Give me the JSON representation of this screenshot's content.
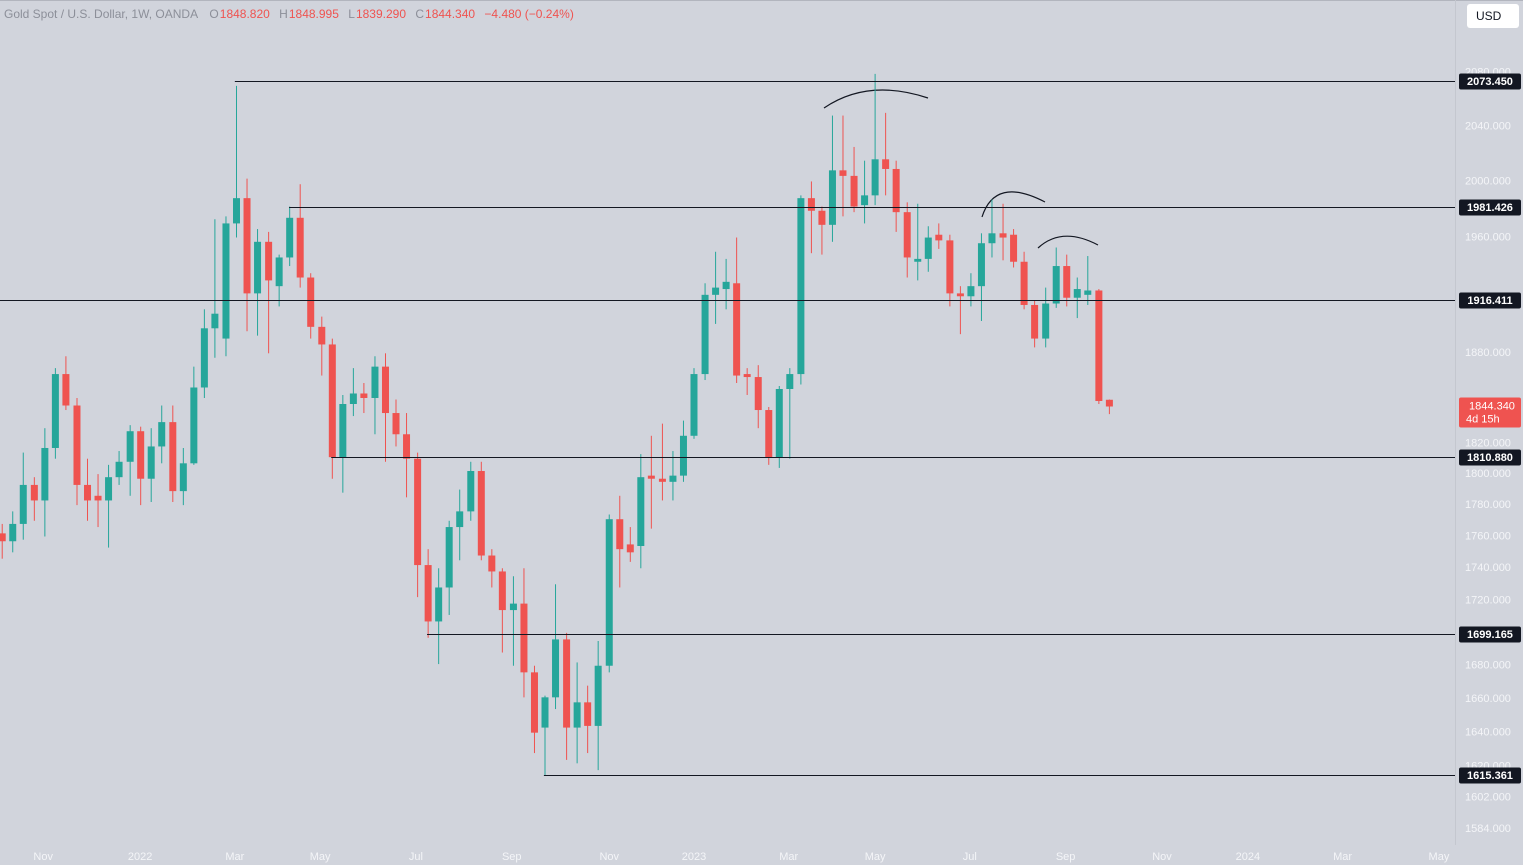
{
  "header": {
    "symbol": "Gold Spot / U.S. Dollar, 1W, OANDA",
    "ohlc": [
      {
        "label": "O",
        "value": "1848.820"
      },
      {
        "label": "H",
        "value": "1848.995"
      },
      {
        "label": "L",
        "value": "1839.290"
      },
      {
        "label": "C",
        "value": "1844.340"
      }
    ],
    "change": "−4.480 (−0.24%)",
    "currency": "USD"
  },
  "chart_data": {
    "type": "candlestick",
    "log_scale": true,
    "up_color": "#26a69a",
    "down_color": "#ef5350",
    "x": [
      2021.751,
      2021.77,
      2021.789,
      2021.809,
      2021.828,
      2021.847,
      2021.866,
      2021.886,
      2021.905,
      2021.924,
      2021.943,
      2021.962,
      2021.982,
      2022.001,
      2022.02,
      2022.039,
      2022.059,
      2022.078,
      2022.097,
      2022.116,
      2022.135,
      2022.155,
      2022.174,
      2022.193,
      2022.212,
      2022.232,
      2022.251,
      2022.27,
      2022.289,
      2022.308,
      2022.328,
      2022.347,
      2022.366,
      2022.385,
      2022.404,
      2022.424,
      2022.443,
      2022.462,
      2022.481,
      2022.501,
      2022.52,
      2022.539,
      2022.558,
      2022.577,
      2022.597,
      2022.616,
      2022.635,
      2022.654,
      2022.674,
      2022.693,
      2022.712,
      2022.731,
      2022.75,
      2022.77,
      2022.789,
      2022.808,
      2022.827,
      2022.847,
      2022.866,
      2022.885,
      2022.904,
      2022.923,
      2022.943,
      2022.962,
      2022.981,
      2023.0,
      2023.02,
      2023.039,
      2023.058,
      2023.077,
      2023.096,
      2023.116,
      2023.135,
      2023.154,
      2023.173,
      2023.193,
      2023.212,
      2023.231,
      2023.25,
      2023.269,
      2023.289,
      2023.308,
      2023.327,
      2023.346,
      2023.365,
      2023.385,
      2023.404,
      2023.423,
      2023.442,
      2023.462,
      2023.481,
      2023.5,
      2023.519,
      2023.538,
      2023.558,
      2023.577,
      2023.596,
      2023.615,
      2023.635,
      2023.654,
      2023.673,
      2023.692,
      2023.711,
      2023.731,
      2023.75
    ],
    "open": [
      1762,
      1757,
      1768,
      1793,
      1783,
      1817,
      1866,
      1845,
      1793,
      1786,
      1783,
      1798,
      1808,
      1828,
      1797,
      1818,
      1834,
      1789,
      1807,
      1857,
      1897,
      1890,
      1970,
      1988,
      1921,
      1957,
      1926,
      1946,
      1974,
      1932,
      1898,
      1886,
      1811,
      1846,
      1853,
      1850,
      1871,
      1840,
      1826,
      1810,
      1742,
      1707,
      1728,
      1766,
      1776,
      1802,
      1748,
      1738,
      1714,
      1718,
      1676,
      1643,
      1661,
      1696,
      1643,
      1658,
      1644,
      1680,
      1771,
      1755,
      1754,
      1799,
      1797,
      1795,
      1799,
      1825,
      1866,
      1920,
      1924,
      1928,
      1866,
      1864,
      1842,
      1811,
      1856,
      1866,
      1988,
      1979,
      1969,
      2008,
      2004,
      1983,
      1990,
      2016,
      2009,
      1978,
      1943,
      1945,
      1962,
      1958,
      1921,
      1919,
      1926,
      1956,
      1963,
      1962,
      1943,
      1913,
      1890,
      1914,
      1940,
      1918,
      1920,
      1923,
      1848.82
    ],
    "high": [
      1768,
      1776,
      1814,
      1798,
      1830,
      1870,
      1878,
      1850,
      1810,
      1800,
      1806,
      1815,
      1832,
      1831,
      1830,
      1845,
      1845,
      1817,
      1871,
      1910,
      1973,
      1975,
      2070,
      2002,
      1966,
      1964,
      1948,
      1982,
      1998,
      1935,
      1905,
      1890,
      1852,
      1870,
      1860,
      1878,
      1880,
      1849,
      1840,
      1814,
      1752,
      1740,
      1770,
      1790,
      1808,
      1808,
      1752,
      1740,
      1735,
      1740,
      1680,
      1662,
      1730,
      1700,
      1682,
      1668,
      1695,
      1774,
      1786,
      1766,
      1813,
      1825,
      1833,
      1815,
      1835,
      1870,
      1928,
      1950,
      1945,
      1960,
      1870,
      1872,
      1844,
      1858,
      1870,
      1990,
      2000,
      1982,
      2048,
      2048,
      2025,
      2015,
      2079,
      2050,
      2015,
      1985,
      1984,
      1968,
      1970,
      1962,
      1926,
      1935,
      1963,
      1987,
      1984,
      1966,
      1950,
      1916,
      1925,
      1953,
      1948,
      1932,
      1947,
      1924,
      1848.995
    ],
    "low": [
      1746,
      1750,
      1758,
      1770,
      1760,
      1810,
      1842,
      1780,
      1770,
      1766,
      1753,
      1793,
      1786,
      1780,
      1782,
      1807,
      1782,
      1780,
      1806,
      1850,
      1877,
      1878,
      1960,
      1895,
      1892,
      1880,
      1912,
      1940,
      1925,
      1890,
      1865,
      1797,
      1788,
      1838,
      1840,
      1826,
      1808,
      1818,
      1785,
      1722,
      1697,
      1681,
      1711,
      1745,
      1770,
      1745,
      1728,
      1688,
      1680,
      1661,
      1628,
      1615,
      1654,
      1624,
      1622,
      1628,
      1618,
      1676,
      1728,
      1744,
      1740,
      1765,
      1783,
      1783,
      1795,
      1823,
      1862,
      1900,
      1910,
      1860,
      1852,
      1830,
      1806,
      1804,
      1810,
      1859,
      1949,
      1948,
      1957,
      1975,
      1978,
      1970,
      1983,
      1990,
      1964,
      1932,
      1930,
      1936,
      1952,
      1912,
      1893,
      1912,
      1902,
      1946,
      1944,
      1939,
      1910,
      1884,
      1884,
      1911,
      1912,
      1904,
      1913,
      1846,
      1839.29
    ],
    "close": [
      1757,
      1768,
      1793,
      1783,
      1817,
      1866,
      1845,
      1793,
      1783,
      1783,
      1798,
      1808,
      1828,
      1797,
      1818,
      1834,
      1789,
      1807,
      1857,
      1897,
      1907,
      1970,
      1988,
      1921,
      1957,
      1930,
      1946,
      1974,
      1932,
      1898,
      1886,
      1811,
      1846,
      1853,
      1850,
      1871,
      1840,
      1826,
      1810,
      1742,
      1707,
      1728,
      1766,
      1776,
      1802,
      1748,
      1738,
      1714,
      1718,
      1676,
      1640,
      1661,
      1696,
      1643,
      1658,
      1644,
      1680,
      1771,
      1752,
      1750,
      1798,
      1797,
      1795,
      1799,
      1825,
      1866,
      1920,
      1925,
      1929,
      1865,
      1864,
      1842,
      1811,
      1856,
      1866,
      1988,
      1979,
      1969,
      2008,
      2004,
      1982,
      1990,
      2016,
      2009,
      1978,
      1946,
      1945,
      1960,
      1958,
      1921,
      1919,
      1926,
      1956,
      1963,
      1960,
      1943,
      1913,
      1890,
      1914,
      1940,
      1918,
      1924,
      1923,
      1848,
      1844.34
    ],
    "xlim": [
      2021.747,
      2024.374
    ],
    "xticks": [
      {
        "value": 2021.825,
        "label": "Nov"
      },
      {
        "value": 2022.0,
        "label": "2022"
      },
      {
        "value": 2022.171,
        "label": "Mar"
      },
      {
        "value": 2022.325,
        "label": "May"
      },
      {
        "value": 2022.498,
        "label": "Jul"
      },
      {
        "value": 2022.671,
        "label": "Sep"
      },
      {
        "value": 2022.847,
        "label": "Nov"
      },
      {
        "value": 2023.0,
        "label": "2023"
      },
      {
        "value": 2023.171,
        "label": "Mar"
      },
      {
        "value": 2023.327,
        "label": "May"
      },
      {
        "value": 2023.498,
        "label": "Jul"
      },
      {
        "value": 2023.671,
        "label": "Sep"
      },
      {
        "value": 2023.845,
        "label": "Nov"
      },
      {
        "value": 2024.0,
        "label": "2024"
      },
      {
        "value": 2024.171,
        "label": "Mar"
      },
      {
        "value": 2024.345,
        "label": "May"
      }
    ],
    "ylim": [
      1575,
      2135
    ],
    "yticks": [
      {
        "value": 2080,
        "label": "2080.000"
      },
      {
        "value": 2040,
        "label": "2040.000"
      },
      {
        "value": 2000,
        "label": "2000.000"
      },
      {
        "value": 1960,
        "label": "1960.000"
      },
      {
        "value": 1880,
        "label": "1880.000"
      },
      {
        "value": 1820,
        "label": "1820.000"
      },
      {
        "value": 1800,
        "label": "1800.000"
      },
      {
        "value": 1780,
        "label": "1780.000"
      },
      {
        "value": 1760,
        "label": "1760.000"
      },
      {
        "value": 1740,
        "label": "1740.000"
      },
      {
        "value": 1720,
        "label": "1720.000"
      },
      {
        "value": 1680,
        "label": "1680.000"
      },
      {
        "value": 1660,
        "label": "1660.000"
      },
      {
        "value": 1640,
        "label": "1640.000"
      },
      {
        "value": 1620,
        "label": "1620.000"
      },
      {
        "value": 1602,
        "label": "1602.000"
      },
      {
        "value": 1584,
        "label": "1584.000"
      }
    ],
    "levels": [
      {
        "value": 2073.45,
        "label": "2073.450",
        "start": 2022.171
      },
      {
        "value": 1981.426,
        "label": "1981.426",
        "start": 2022.269
      },
      {
        "value": 1916.411,
        "label": "1916.411",
        "start": 2021.747
      },
      {
        "value": 1810.88,
        "label": "1810.880",
        "start": 2022.345
      },
      {
        "value": 1699.165,
        "label": "1699.165",
        "start": 2022.518
      },
      {
        "value": 1615.361,
        "label": "1615.361",
        "start": 2022.729
      }
    ],
    "last_price": {
      "value": 1844.34,
      "label": "1844.340",
      "countdown": "4d 15h"
    }
  }
}
